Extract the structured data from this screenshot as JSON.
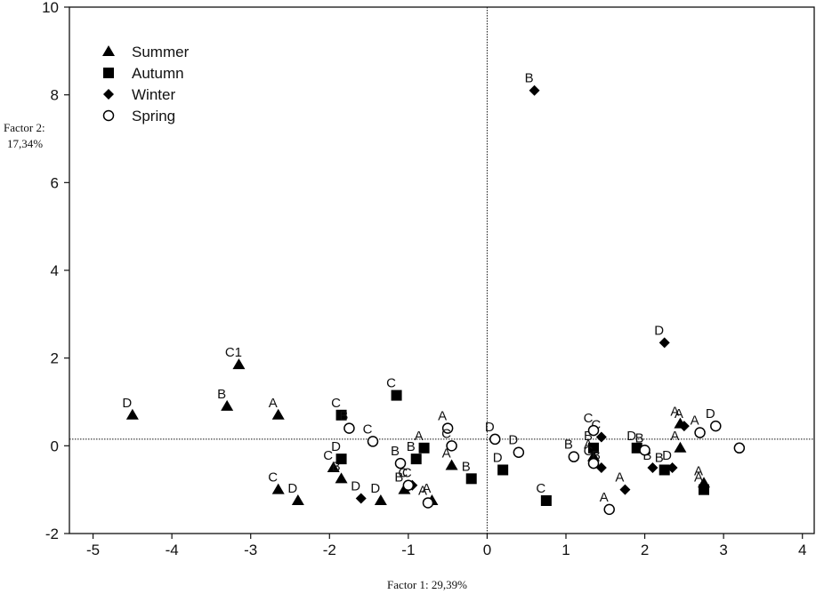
{
  "chart_data": {
    "type": "scatter",
    "xlabel": "Factor 1: 29,39%",
    "ylabel_line1": "Factor 2:",
    "ylabel_line2": "17,34%",
    "xlim": [
      -5.3,
      4.15
    ],
    "ylim": [
      -2,
      10
    ],
    "x_ticks": [
      "-5",
      "-4",
      "-3",
      "-2",
      "-1",
      "0",
      "1",
      "2",
      "3",
      "4"
    ],
    "y_ticks": [
      "-2",
      "0",
      "2",
      "4",
      "6",
      "8",
      "10"
    ],
    "reference_lines": {
      "x": 0,
      "y": 0.15
    },
    "legend_position": "top-left",
    "series": [
      {
        "name": "Summer",
        "marker": "triangle",
        "points": [
          {
            "x": -4.5,
            "y": 0.7,
            "label": "D"
          },
          {
            "x": -3.3,
            "y": 0.9,
            "label": "B"
          },
          {
            "x": -3.15,
            "y": 1.85,
            "label": "C1"
          },
          {
            "x": -2.65,
            "y": 0.7,
            "label": "A"
          },
          {
            "x": -2.65,
            "y": -1.0,
            "label": "C"
          },
          {
            "x": -2.4,
            "y": -1.25,
            "label": "D"
          },
          {
            "x": -1.95,
            "y": -0.5,
            "label": "C"
          },
          {
            "x": -1.85,
            "y": -0.75,
            "label": "B"
          },
          {
            "x": -1.35,
            "y": -1.25,
            "label": "D"
          },
          {
            "x": -1.05,
            "y": -1.0,
            "label": "B"
          },
          {
            "x": -0.7,
            "y": -1.25,
            "label": "A"
          },
          {
            "x": -0.45,
            "y": -0.45,
            "label": "A"
          },
          {
            "x": 1.35,
            "y": -0.25,
            "label": "A"
          },
          {
            "x": 2.45,
            "y": 0.5,
            "label": "A"
          },
          {
            "x": 2.45,
            "y": -0.05,
            "label": "A"
          },
          {
            "x": 2.75,
            "y": -0.85,
            "label": "A"
          }
        ]
      },
      {
        "name": "Autumn",
        "marker": "square",
        "points": [
          {
            "x": -1.85,
            "y": 0.7,
            "label": "C"
          },
          {
            "x": -1.85,
            "y": -0.3,
            "label": "D"
          },
          {
            "x": -1.15,
            "y": 1.15,
            "label": "C"
          },
          {
            "x": -0.9,
            "y": -0.3,
            "label": "B"
          },
          {
            "x": -0.8,
            "y": -0.05,
            "label": "A"
          },
          {
            "x": -0.2,
            "y": -0.75,
            "label": "B"
          },
          {
            "x": 0.2,
            "y": -0.55,
            "label": "D"
          },
          {
            "x": 0.75,
            "y": -1.25,
            "label": "C"
          },
          {
            "x": 1.35,
            "y": -0.05,
            "label": "B"
          },
          {
            "x": 1.9,
            "y": -0.05,
            "label": "D"
          },
          {
            "x": 2.25,
            "y": -0.55,
            "label": "B"
          },
          {
            "x": 2.75,
            "y": -1.0,
            "label": "A"
          }
        ]
      },
      {
        "name": "Winter",
        "marker": "diamond",
        "points": [
          {
            "x": 0.6,
            "y": 8.1,
            "label": "B"
          },
          {
            "x": 2.25,
            "y": 2.35,
            "label": "D"
          },
          {
            "x": -1.6,
            "y": -1.2,
            "label": "D"
          },
          {
            "x": -0.95,
            "y": -0.9,
            "label": "C"
          },
          {
            "x": 1.45,
            "y": 0.2,
            "label": "C"
          },
          {
            "x": 1.45,
            "y": -0.5,
            "label": "B"
          },
          {
            "x": 1.75,
            "y": -1.0,
            "label": "A"
          },
          {
            "x": 2.1,
            "y": -0.5,
            "label": "B"
          },
          {
            "x": 2.35,
            "y": -0.5,
            "label": "D"
          },
          {
            "x": 2.5,
            "y": 0.45,
            "label": "A"
          }
        ]
      },
      {
        "name": "Spring",
        "marker": "circle",
        "points": [
          {
            "x": -1.75,
            "y": 0.4,
            "label": "B"
          },
          {
            "x": -1.45,
            "y": 0.1,
            "label": "C"
          },
          {
            "x": -1.1,
            "y": -0.4,
            "label": "B"
          },
          {
            "x": -1.0,
            "y": -0.9,
            "label": "C"
          },
          {
            "x": -0.75,
            "y": -1.3,
            "label": "A"
          },
          {
            "x": -0.5,
            "y": 0.4,
            "label": "A"
          },
          {
            "x": -0.45,
            "y": 0.0,
            "label": "C"
          },
          {
            "x": 0.1,
            "y": 0.15,
            "label": "D"
          },
          {
            "x": 0.4,
            "y": -0.15,
            "label": "D"
          },
          {
            "x": 1.1,
            "y": -0.25,
            "label": "B"
          },
          {
            "x": 1.35,
            "y": -0.4,
            "label": "C"
          },
          {
            "x": 1.35,
            "y": 0.35,
            "label": "C"
          },
          {
            "x": 1.55,
            "y": -1.45,
            "label": "A"
          },
          {
            "x": 2.0,
            "y": -0.1,
            "label": "B"
          },
          {
            "x": 2.7,
            "y": 0.3,
            "label": "A"
          },
          {
            "x": 2.9,
            "y": 0.45,
            "label": "D"
          },
          {
            "x": 3.2,
            "y": -0.05,
            "label": ""
          }
        ]
      }
    ]
  }
}
